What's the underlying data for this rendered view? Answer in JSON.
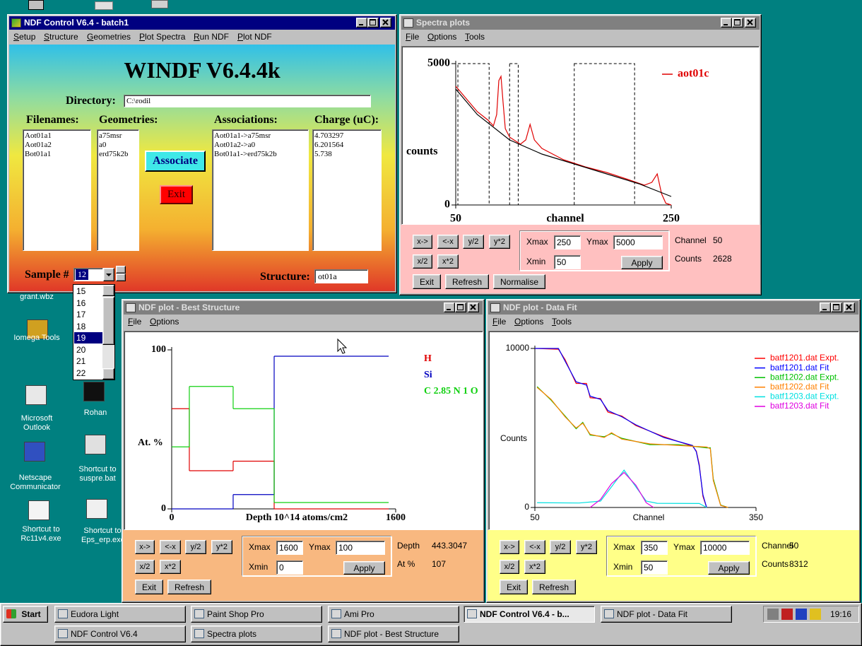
{
  "desktop": {
    "icons": [
      "grant.wbz",
      "Iomega Tools",
      "Microsoft Outlook",
      "Rohan",
      "Netscape Communicator",
      "Shortcut to suspre.bat",
      "Shortcut to Rc11v4.exe",
      "Shortcut to Eps_erp.exe"
    ]
  },
  "ndf_control": {
    "title": "NDF Control V6.4 - batch1",
    "menu": [
      "Setup",
      "Structure",
      "Geometries",
      "Plot Spectra",
      "Run NDF",
      "Plot NDF"
    ],
    "heading": "WINDF V6.4.4k",
    "directory_label": "Directory:",
    "directory": "C:\\rodil",
    "columns": [
      {
        "header": "Filenames:",
        "items": [
          "Aot01a1",
          "Aot01a2",
          "Bot01a1"
        ]
      },
      {
        "header": "Geometries:",
        "items": [
          "a75msr",
          "a0",
          "erd75k2b"
        ]
      },
      {
        "header": "Associations:",
        "items": [
          "Aot01a1->a75msr",
          "Aot01a2->a0",
          "Bot01a1->erd75k2b"
        ]
      },
      {
        "header": "Charge (uC):",
        "items": [
          4.703297,
          6.201564,
          5.738
        ]
      }
    ],
    "associate": "Associate",
    "exit": "Exit",
    "sample_label": "Sample #",
    "sample": 12,
    "sample_options": [
      15,
      16,
      17,
      18,
      19,
      20,
      21,
      22
    ],
    "structure_label": "Structure:",
    "structure": "ot01a"
  },
  "spectra": {
    "title": "Spectra plots",
    "menu": [
      "File",
      "Options",
      "Tools"
    ],
    "plot": {
      "type": "line",
      "xlim": [
        50,
        250
      ],
      "ylim": [
        0,
        5000
      ],
      "xticks": [
        50,
        250
      ],
      "yticks": [
        0,
        5000
      ],
      "xlabel": "channel",
      "ylabel": "counts",
      "regions": [
        [
          52,
          81
        ],
        [
          100,
          108
        ],
        [
          160,
          216
        ]
      ],
      "series": [
        {
          "name": "aot01c",
          "color": "#e00000",
          "x": [
            50,
            60,
            70,
            80,
            85,
            88,
            90,
            92,
            94,
            96,
            100,
            110,
            115,
            119,
            123,
            130,
            150,
            170,
            190,
            210,
            225,
            232,
            237,
            241,
            245,
            250
          ],
          "values": [
            4200,
            3750,
            3300,
            3000,
            2800,
            3200,
            4400,
            4550,
            3600,
            2700,
            2400,
            2150,
            2300,
            2850,
            2300,
            2000,
            1600,
            1350,
            1150,
            900,
            700,
            800,
            1100,
            400,
            60,
            0
          ]
        },
        {
          "color": "#000000",
          "x": [
            50,
            70,
            100,
            130,
            160,
            190,
            220,
            250
          ],
          "values": [
            4100,
            3200,
            2300,
            1800,
            1450,
            1100,
            750,
            300
          ]
        }
      ]
    },
    "controls": {
      "buttons": [
        "x->",
        "<-x",
        "y/2",
        "y*2",
        "x/2",
        "x*2"
      ],
      "xmax_label": "Xmax",
      "xmax": 250,
      "ymax_label": "Ymax",
      "ymax": 5000,
      "xmin_label": "Xmin",
      "xmin": 50,
      "apply": "Apply",
      "info": [
        {
          "label": "Channel",
          "value": 50
        },
        {
          "label": "Counts",
          "value": 2628
        }
      ],
      "bottom_buttons": [
        "Exit",
        "Refresh",
        "Normalise"
      ]
    }
  },
  "best_structure": {
    "title": "NDF plot - Best Structure",
    "menu": [
      "File",
      "Options"
    ],
    "plot": {
      "type": "line",
      "drawstyle": "steps-post",
      "xlim": [
        0,
        1600
      ],
      "ylim": [
        0,
        100
      ],
      "xticks": [
        0,
        1600
      ],
      "yticks": [
        0,
        100
      ],
      "xlabel": "Depth 10^14 atoms/cm2",
      "ylabel": "At. %",
      "series": [
        {
          "name": "H",
          "color": "#e00000",
          "x": [
            0,
            126,
            439,
            732,
            1550
          ],
          "values": [
            63,
            24,
            30,
            0,
            0
          ]
        },
        {
          "name": "Si",
          "color": "#0000c0",
          "x": [
            0,
            126,
            439,
            732,
            1550
          ],
          "values": [
            0,
            0,
            9,
            96,
            96
          ]
        },
        {
          "name": "C 2.85 N 1 O",
          "color": "#10d010",
          "x": [
            0,
            126,
            439,
            732,
            1550
          ],
          "values": [
            39,
            77,
            63,
            4,
            4
          ]
        }
      ]
    },
    "controls": {
      "buttons": [
        "x->",
        "<-x",
        "y/2",
        "y*2",
        "x/2",
        "x*2"
      ],
      "xmax_label": "Xmax",
      "xmax": 1600,
      "ymax_label": "Ymax",
      "ymax": 100,
      "xmin_label": "Xmin",
      "xmin": 0,
      "apply": "Apply",
      "info": [
        {
          "label": "Depth",
          "value": 443.3047
        },
        {
          "label": "At %",
          "value": 107
        }
      ],
      "bottom_buttons": [
        "Exit",
        "Refresh"
      ]
    }
  },
  "data_fit": {
    "title": "NDF plot - Data Fit",
    "menu": [
      "File",
      "Options",
      "Tools"
    ],
    "plot": {
      "type": "line",
      "xlim": [
        50,
        350
      ],
      "ylim": [
        0,
        10000
      ],
      "xticks": [
        50,
        350
      ],
      "yticks": [
        0,
        10000
      ],
      "xlabel": "Channel",
      "ylabel": "Counts",
      "series": [
        {
          "name": "batf1201.dat Expt.",
          "color": "#ff0000",
          "x": [
            50,
            82,
            91,
            106,
            120,
            125,
            139,
            149,
            168,
            187,
            225,
            264,
            269,
            273,
            278,
            283
          ],
          "values": [
            10000,
            9950,
            9300,
            7800,
            7800,
            6900,
            6850,
            6000,
            5750,
            5150,
            4450,
            3850,
            3550,
            2700,
            700,
            0
          ]
        },
        {
          "name": "batf1201.dat Fit",
          "color": "#0000ff",
          "x": [
            50,
            82,
            91,
            106,
            120,
            125,
            139,
            149,
            168,
            187,
            225,
            264,
            269,
            273,
            278,
            283
          ],
          "values": [
            10000,
            10000,
            9200,
            7900,
            7700,
            7000,
            6800,
            6100,
            5700,
            5200,
            4400,
            3900,
            3500,
            2600,
            800,
            0
          ]
        },
        {
          "name": "batf1202.dat Expt.",
          "color": "#00c000",
          "x": [
            53,
            72,
            91,
            106,
            115,
            125,
            144,
            154,
            168,
            206,
            245,
            283,
            288,
            292,
            302,
            312
          ],
          "values": [
            7600,
            6750,
            5750,
            4950,
            5350,
            4550,
            4450,
            4650,
            4350,
            3950,
            3950,
            3750,
            3750,
            1800,
            150,
            0
          ]
        },
        {
          "name": "batf1202.dat Fit",
          "color": "#ff8000",
          "x": [
            53,
            72,
            91,
            106,
            115,
            125,
            144,
            154,
            168,
            206,
            245,
            283,
            288,
            292,
            302,
            312
          ],
          "values": [
            7550,
            6800,
            5700,
            5000,
            5300,
            4600,
            4400,
            4700,
            4300,
            4000,
            3900,
            3800,
            3700,
            1700,
            130,
            0
          ]
        },
        {
          "name": "batf1203.dat Expt.",
          "color": "#00e0e0",
          "x": [
            53,
            110,
            139,
            154,
            171,
            187,
            201,
            216,
            273,
            283
          ],
          "values": [
            300,
            280,
            400,
            1300,
            2350,
            1300,
            400,
            260,
            250,
            0
          ]
        },
        {
          "name": "batf1203.dat Fit",
          "color": "#e000e0",
          "x": [
            125,
            139,
            154,
            171,
            187,
            201,
            211
          ],
          "values": [
            0,
            500,
            1500,
            2200,
            1400,
            300,
            0
          ]
        }
      ]
    },
    "controls": {
      "buttons": [
        "x->",
        "<-x",
        "y/2",
        "y*2",
        "x/2",
        "x*2"
      ],
      "xmax_label": "Xmax",
      "xmax": 350,
      "ymax_label": "Ymax",
      "ymax": 10000,
      "xmin_label": "Xmin",
      "xmin": 50,
      "apply": "Apply",
      "info": [
        {
          "label": "Channel",
          "value": 50
        },
        {
          "label": "Counts",
          "value": 8312
        }
      ],
      "bottom_buttons": [
        "Exit",
        "Refresh"
      ]
    }
  },
  "taskbar": {
    "start": "Start",
    "row1": [
      "Eudora Light",
      "Paint Shop Pro",
      "Ami Pro",
      "NDF Control V6.4 - b...",
      "NDF plot - Data Fit"
    ],
    "row2": [
      "NDF Control V6.4",
      "Spectra plots",
      "NDF plot - Best Structure"
    ],
    "clock": "19:16"
  }
}
